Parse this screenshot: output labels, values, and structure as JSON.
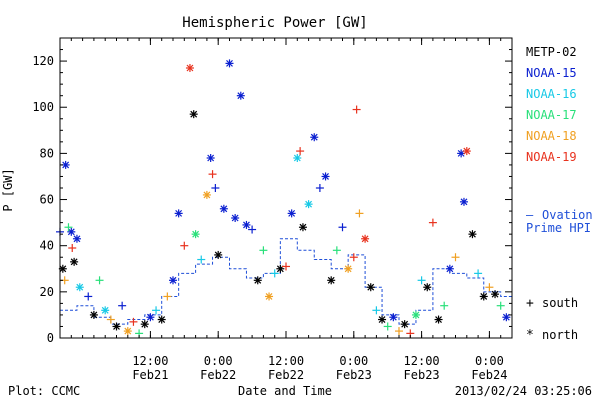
{
  "chart_data": {
    "type": "scatter",
    "title": "Hemispheric Power [GW]",
    "ylabel": "P [GW]",
    "xlabel": "Date and Time",
    "ylim": [
      0,
      130
    ],
    "yticks": [
      0,
      20,
      40,
      60,
      80,
      100,
      120
    ],
    "xlim": [
      "2013-02-20T20:00",
      "2013-02-24T04:00"
    ],
    "xticks": [
      {
        "time": "2013-02-21T12:00",
        "label": "12:00",
        "date": "Feb21"
      },
      {
        "time": "2013-02-22T00:00",
        "label": "0:00",
        "date": "Feb22"
      },
      {
        "time": "2013-02-22T12:00",
        "label": "12:00",
        "date": "Feb22"
      },
      {
        "time": "2013-02-23T00:00",
        "label": "0:00",
        "date": "Feb23"
      },
      {
        "time": "2013-02-23T12:00",
        "label": "12:00",
        "date": "Feb23"
      },
      {
        "time": "2013-02-24T00:00",
        "label": "0:00",
        "date": "Feb24"
      }
    ],
    "grid": false,
    "legend_position": "right",
    "footer_left": "Plot: CCMC",
    "footer_right": "2013/02/24 03:25:06",
    "marker_legend": [
      {
        "symbol": "+",
        "label": "south"
      },
      {
        "symbol": "*",
        "label": "north"
      }
    ],
    "model_legend": {
      "symbol": "—",
      "label_line1": "Ovation",
      "label_line2": "Prime HPI",
      "color": "#1f4fd8"
    },
    "series": [
      {
        "name": "METP-02",
        "color": "#000000"
      },
      {
        "name": "NOAA-15",
        "color": "#0a1fd0"
      },
      {
        "name": "NOAA-16",
        "color": "#17c9e6"
      },
      {
        "name": "NOAA-17",
        "color": "#29e07a"
      },
      {
        "name": "NOAA-18",
        "color": "#f0a022"
      },
      {
        "name": "NOAA-19",
        "color": "#e8321e"
      }
    ],
    "points": [
      {
        "t": "2013-02-20T20:00",
        "v": 46,
        "m": "+",
        "s": 1
      },
      {
        "t": "2013-02-20T21:00",
        "v": 75,
        "m": "*",
        "s": 1
      },
      {
        "t": "2013-02-20T22:00",
        "v": 46,
        "m": "*",
        "s": 1
      },
      {
        "t": "2013-02-20T23:00",
        "v": 43,
        "m": "*",
        "s": 1
      },
      {
        "t": "2013-02-20T20:30",
        "v": 30,
        "m": "*",
        "s": 0
      },
      {
        "t": "2013-02-20T22:30",
        "v": 33,
        "m": "*",
        "s": 0
      },
      {
        "t": "2013-02-20T21:30",
        "v": 48,
        "m": "+",
        "s": 3
      },
      {
        "t": "2013-02-20T22:10",
        "v": 39,
        "m": "+",
        "s": 5
      },
      {
        "t": "2013-02-20T20:50",
        "v": 25,
        "m": "+",
        "s": 4
      },
      {
        "t": "2013-02-20T23:30",
        "v": 22,
        "m": "*",
        "s": 2
      },
      {
        "t": "2013-02-21T01:00",
        "v": 18,
        "m": "+",
        "s": 1
      },
      {
        "t": "2013-02-21T02:00",
        "v": 10,
        "m": "*",
        "s": 0
      },
      {
        "t": "2013-02-21T03:00",
        "v": 25,
        "m": "+",
        "s": 3
      },
      {
        "t": "2013-02-21T04:00",
        "v": 12,
        "m": "*",
        "s": 2
      },
      {
        "t": "2013-02-21T05:00",
        "v": 8,
        "m": "+",
        "s": 4
      },
      {
        "t": "2013-02-21T06:00",
        "v": 5,
        "m": "*",
        "s": 0
      },
      {
        "t": "2013-02-21T07:00",
        "v": 14,
        "m": "+",
        "s": 1
      },
      {
        "t": "2013-02-21T08:00",
        "v": 3,
        "m": "*",
        "s": 4
      },
      {
        "t": "2013-02-21T09:00",
        "v": 7,
        "m": "+",
        "s": 5
      },
      {
        "t": "2013-02-21T10:00",
        "v": 2,
        "m": "+",
        "s": 3
      },
      {
        "t": "2013-02-21T11:00",
        "v": 6,
        "m": "*",
        "s": 0
      },
      {
        "t": "2013-02-21T12:00",
        "v": 9,
        "m": "*",
        "s": 1
      },
      {
        "t": "2013-02-21T13:00",
        "v": 12,
        "m": "+",
        "s": 2
      },
      {
        "t": "2013-02-21T14:00",
        "v": 8,
        "m": "*",
        "s": 0
      },
      {
        "t": "2013-02-21T15:00",
        "v": 18,
        "m": "+",
        "s": 4
      },
      {
        "t": "2013-02-21T16:00",
        "v": 25,
        "m": "*",
        "s": 1
      },
      {
        "t": "2013-02-21T17:00",
        "v": 54,
        "m": "*",
        "s": 1
      },
      {
        "t": "2013-02-21T18:00",
        "v": 40,
        "m": "+",
        "s": 5
      },
      {
        "t": "2013-02-21T19:00",
        "v": 117,
        "m": "*",
        "s": 5
      },
      {
        "t": "2013-02-21T19:40",
        "v": 97,
        "m": "*",
        "s": 0
      },
      {
        "t": "2013-02-21T20:00",
        "v": 45,
        "m": "*",
        "s": 3
      },
      {
        "t": "2013-02-21T21:00",
        "v": 34,
        "m": "+",
        "s": 2
      },
      {
        "t": "2013-02-21T22:00",
        "v": 62,
        "m": "*",
        "s": 4
      },
      {
        "t": "2013-02-21T22:40",
        "v": 78,
        "m": "*",
        "s": 1
      },
      {
        "t": "2013-02-21T23:00",
        "v": 71,
        "m": "+",
        "s": 5
      },
      {
        "t": "2013-02-21T23:30",
        "v": 65,
        "m": "+",
        "s": 1
      },
      {
        "t": "2013-02-22T00:00",
        "v": 36,
        "m": "*",
        "s": 0
      },
      {
        "t": "2013-02-22T01:00",
        "v": 56,
        "m": "*",
        "s": 1
      },
      {
        "t": "2013-02-22T02:00",
        "v": 119,
        "m": "*",
        "s": 1
      },
      {
        "t": "2013-02-22T03:00",
        "v": 52,
        "m": "*",
        "s": 1
      },
      {
        "t": "2013-02-22T04:00",
        "v": 105,
        "m": "*",
        "s": 1
      },
      {
        "t": "2013-02-22T05:00",
        "v": 49,
        "m": "*",
        "s": 1
      },
      {
        "t": "2013-02-22T06:00",
        "v": 47,
        "m": "+",
        "s": 1
      },
      {
        "t": "2013-02-22T07:00",
        "v": 25,
        "m": "*",
        "s": 0
      },
      {
        "t": "2013-02-22T08:00",
        "v": 38,
        "m": "+",
        "s": 3
      },
      {
        "t": "2013-02-22T09:00",
        "v": 18,
        "m": "*",
        "s": 4
      },
      {
        "t": "2013-02-22T10:00",
        "v": 28,
        "m": "+",
        "s": 2
      },
      {
        "t": "2013-02-22T11:00",
        "v": 30,
        "m": "*",
        "s": 0
      },
      {
        "t": "2013-02-22T12:00",
        "v": 31,
        "m": "+",
        "s": 5
      },
      {
        "t": "2013-02-22T13:00",
        "v": 54,
        "m": "*",
        "s": 1
      },
      {
        "t": "2013-02-22T14:00",
        "v": 78,
        "m": "*",
        "s": 2
      },
      {
        "t": "2013-02-22T14:30",
        "v": 81,
        "m": "+",
        "s": 5
      },
      {
        "t": "2013-02-22T15:00",
        "v": 48,
        "m": "*",
        "s": 0
      },
      {
        "t": "2013-02-22T16:00",
        "v": 58,
        "m": "*",
        "s": 2
      },
      {
        "t": "2013-02-22T17:00",
        "v": 87,
        "m": "*",
        "s": 1
      },
      {
        "t": "2013-02-22T18:00",
        "v": 65,
        "m": "+",
        "s": 1
      },
      {
        "t": "2013-02-22T19:00",
        "v": 70,
        "m": "*",
        "s": 1
      },
      {
        "t": "2013-02-22T20:00",
        "v": 25,
        "m": "*",
        "s": 0
      },
      {
        "t": "2013-02-22T21:00",
        "v": 38,
        "m": "+",
        "s": 3
      },
      {
        "t": "2013-02-22T22:00",
        "v": 48,
        "m": "+",
        "s": 1
      },
      {
        "t": "2013-02-22T23:00",
        "v": 30,
        "m": "*",
        "s": 4
      },
      {
        "t": "2013-02-23T00:00",
        "v": 35,
        "m": "+",
        "s": 5
      },
      {
        "t": "2013-02-23T00:30",
        "v": 99,
        "m": "+",
        "s": 5
      },
      {
        "t": "2013-02-23T01:00",
        "v": 54,
        "m": "+",
        "s": 4
      },
      {
        "t": "2013-02-23T02:00",
        "v": 43,
        "m": "*",
        "s": 5
      },
      {
        "t": "2013-02-23T03:00",
        "v": 22,
        "m": "*",
        "s": 0
      },
      {
        "t": "2013-02-23T04:00",
        "v": 12,
        "m": "+",
        "s": 2
      },
      {
        "t": "2013-02-23T05:00",
        "v": 8,
        "m": "*",
        "s": 0
      },
      {
        "t": "2013-02-23T06:00",
        "v": 5,
        "m": "+",
        "s": 3
      },
      {
        "t": "2013-02-23T07:00",
        "v": 9,
        "m": "*",
        "s": 1
      },
      {
        "t": "2013-02-23T08:00",
        "v": 3,
        "m": "+",
        "s": 4
      },
      {
        "t": "2013-02-23T09:00",
        "v": 6,
        "m": "*",
        "s": 0
      },
      {
        "t": "2013-02-23T10:00",
        "v": 2,
        "m": "+",
        "s": 5
      },
      {
        "t": "2013-02-23T11:00",
        "v": 10,
        "m": "*",
        "s": 3
      },
      {
        "t": "2013-02-23T12:00",
        "v": 25,
        "m": "+",
        "s": 2
      },
      {
        "t": "2013-02-23T13:00",
        "v": 22,
        "m": "*",
        "s": 0
      },
      {
        "t": "2013-02-23T14:00",
        "v": 50,
        "m": "+",
        "s": 5
      },
      {
        "t": "2013-02-23T15:00",
        "v": 8,
        "m": "*",
        "s": 0
      },
      {
        "t": "2013-02-23T16:00",
        "v": 14,
        "m": "+",
        "s": 3
      },
      {
        "t": "2013-02-23T17:00",
        "v": 30,
        "m": "*",
        "s": 1
      },
      {
        "t": "2013-02-23T18:00",
        "v": 35,
        "m": "+",
        "s": 4
      },
      {
        "t": "2013-02-23T19:00",
        "v": 80,
        "m": "*",
        "s": 1
      },
      {
        "t": "2013-02-23T19:30",
        "v": 59,
        "m": "*",
        "s": 1
      },
      {
        "t": "2013-02-23T20:00",
        "v": 81,
        "m": "*",
        "s": 5
      },
      {
        "t": "2013-02-23T21:00",
        "v": 45,
        "m": "*",
        "s": 0
      },
      {
        "t": "2013-02-23T22:00",
        "v": 28,
        "m": "+",
        "s": 2
      },
      {
        "t": "2013-02-23T23:00",
        "v": 18,
        "m": "*",
        "s": 0
      },
      {
        "t": "2013-02-24T00:00",
        "v": 22,
        "m": "+",
        "s": 4
      },
      {
        "t": "2013-02-24T01:00",
        "v": 19,
        "m": "*",
        "s": 0
      },
      {
        "t": "2013-02-24T02:00",
        "v": 14,
        "m": "+",
        "s": 3
      },
      {
        "t": "2013-02-24T03:00",
        "v": 9,
        "m": "*",
        "s": 1
      }
    ],
    "ovation_hpi": [
      {
        "t": "2013-02-20T20:00",
        "v": 12
      },
      {
        "t": "2013-02-20T23:00",
        "v": 14
      },
      {
        "t": "2013-02-21T02:00",
        "v": 9
      },
      {
        "t": "2013-02-21T05:00",
        "v": 6
      },
      {
        "t": "2013-02-21T08:00",
        "v": 8
      },
      {
        "t": "2013-02-21T11:00",
        "v": 10
      },
      {
        "t": "2013-02-21T14:00",
        "v": 18
      },
      {
        "t": "2013-02-21T17:00",
        "v": 28
      },
      {
        "t": "2013-02-21T20:00",
        "v": 32
      },
      {
        "t": "2013-02-21T23:00",
        "v": 35
      },
      {
        "t": "2013-02-22T02:00",
        "v": 30
      },
      {
        "t": "2013-02-22T05:00",
        "v": 26
      },
      {
        "t": "2013-02-22T08:00",
        "v": 28
      },
      {
        "t": "2013-02-22T11:00",
        "v": 43
      },
      {
        "t": "2013-02-22T14:00",
        "v": 38
      },
      {
        "t": "2013-02-22T17:00",
        "v": 34
      },
      {
        "t": "2013-02-22T20:00",
        "v": 30
      },
      {
        "t": "2013-02-22T23:00",
        "v": 36
      },
      {
        "t": "2013-02-23T02:00",
        "v": 22
      },
      {
        "t": "2013-02-23T05:00",
        "v": 10
      },
      {
        "t": "2013-02-23T08:00",
        "v": 6
      },
      {
        "t": "2013-02-23T11:00",
        "v": 12
      },
      {
        "t": "2013-02-23T14:00",
        "v": 30
      },
      {
        "t": "2013-02-23T17:00",
        "v": 28
      },
      {
        "t": "2013-02-23T20:00",
        "v": 26
      },
      {
        "t": "2013-02-23T23:00",
        "v": 20
      },
      {
        "t": "2013-02-24T02:00",
        "v": 18
      }
    ]
  }
}
